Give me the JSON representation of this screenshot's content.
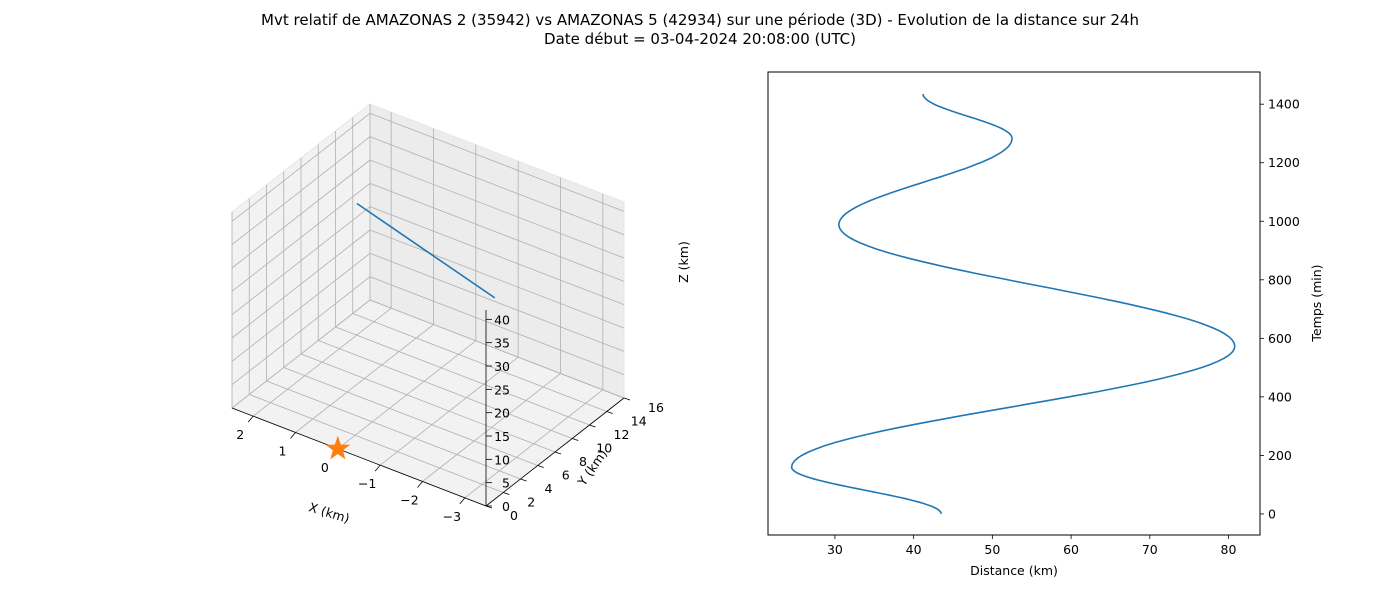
{
  "figure": {
    "title_line1": "Mvt relatif de AMAZONAS 2 (35942) vs AMAZONAS 5 (42934) sur une période (3D) - Evolution de la distance sur 24h",
    "title_line2": "Date début = 03-04-2024 20:08:00 (UTC)"
  },
  "colors": {
    "series": "#1f77b4",
    "marker": "#ff7f0e"
  },
  "chart_data": [
    {
      "type": "line",
      "projection": "3d",
      "xlabel": "X (km)",
      "ylabel": "Y (km)",
      "zlabel": "Z (km)",
      "xlim": [
        -3.5,
        2.5
      ],
      "ylim": [
        0,
        16
      ],
      "zlim": [
        0,
        42
      ],
      "x_ticks": [
        "−3",
        "−2",
        "−1",
        "0",
        "1",
        "2"
      ],
      "y_ticks": [
        "0",
        "2",
        "4",
        "6",
        "8",
        "10",
        "12",
        "14",
        "16"
      ],
      "z_ticks": [
        "0",
        "5",
        "10",
        "15",
        "20",
        "25",
        "30",
        "35",
        "40"
      ],
      "grid": true,
      "series": [
        {
          "points": [
            [
              -3.3,
              2,
              41
            ],
            [
              2.3,
              13.5,
              25
            ]
          ]
        }
      ],
      "markers": [
        {
          "x": 0,
          "y": 0,
          "z": 0,
          "shape": "star"
        }
      ]
    },
    {
      "type": "line",
      "xlabel": "Distance (km)",
      "ylabel": "Temps (min)",
      "xlim": [
        21.5,
        84
      ],
      "ylim": [
        -72,
        1510
      ],
      "x_ticks": [
        30,
        40,
        50,
        60,
        70,
        80
      ],
      "y_ticks": [
        0,
        200,
        400,
        600,
        800,
        1000,
        1200,
        1400
      ],
      "grid": false,
      "y_axis_side": "right",
      "series": [
        {
          "x": [
            43.5,
            24.5,
            80.8,
            30.5,
            52.5,
            41.2
          ],
          "y": [
            0,
            160,
            573,
            988,
            1283,
            1435
          ]
        }
      ]
    }
  ]
}
